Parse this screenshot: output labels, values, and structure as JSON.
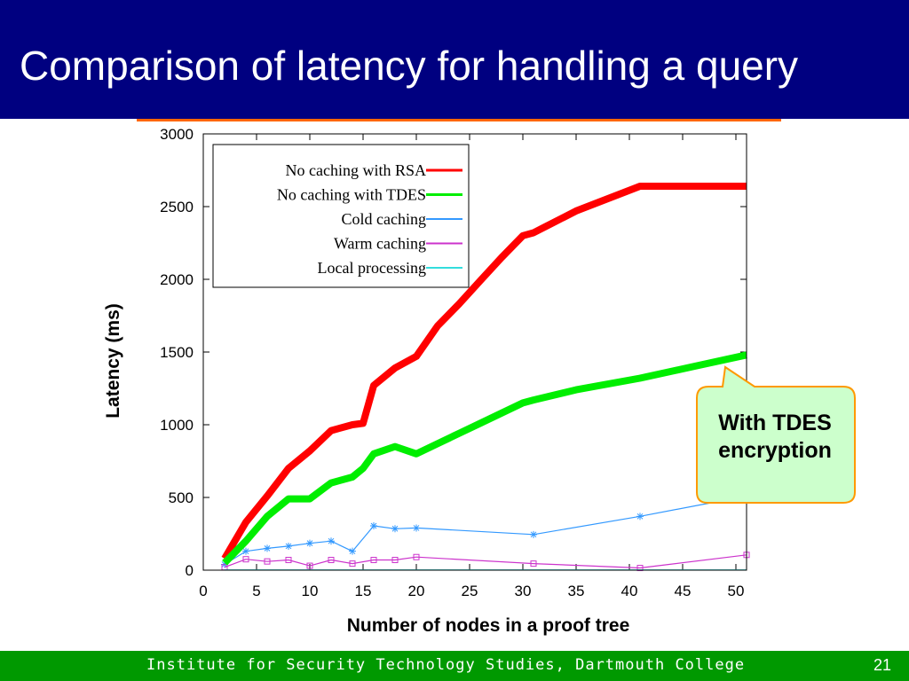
{
  "slide": {
    "title": "Comparison of latency for handling a query",
    "footer": "Institute for Security Technology Studies, Dartmouth College",
    "page_number": "21"
  },
  "callout": {
    "text": "With TDES encryption"
  },
  "colors": {
    "title_bar": "#000080",
    "footer_bar": "#009900",
    "accent_rule": "#ff6600",
    "callout_fill": "#ccffcc",
    "callout_border": "#ff9900"
  },
  "chart_data": {
    "type": "line",
    "xlabel": "Number of nodes in a proof tree",
    "ylabel": "Latency (ms)",
    "xlim": [
      0,
      51
    ],
    "ylim": [
      0,
      3000
    ],
    "xticks": [
      0,
      5,
      10,
      15,
      20,
      25,
      30,
      35,
      40,
      45,
      50
    ],
    "yticks": [
      0,
      500,
      1000,
      1500,
      2000,
      2500,
      3000
    ],
    "legend_position": "top-left",
    "grid": false,
    "series": [
      {
        "name": "No caching with RSA",
        "color": "#ff0000",
        "width": "thick",
        "marker": "none",
        "x": [
          2,
          4,
          6,
          8,
          10,
          12,
          14,
          15,
          16,
          18,
          20,
          22,
          24,
          26,
          28,
          30,
          31,
          35,
          41,
          46,
          51
        ],
        "y": [
          80,
          330,
          510,
          700,
          820,
          960,
          1000,
          1010,
          1270,
          1390,
          1470,
          1680,
          1830,
          1990,
          2150,
          2300,
          2320,
          2470,
          2640,
          2640,
          2640
        ]
      },
      {
        "name": "No caching with TDES",
        "color": "#00ee00",
        "width": "thick",
        "marker": "none",
        "x": [
          2,
          4,
          6,
          8,
          10,
          12,
          14,
          15,
          16,
          18,
          20,
          22,
          24,
          26,
          28,
          30,
          31,
          35,
          41,
          46,
          51
        ],
        "y": [
          50,
          200,
          370,
          490,
          490,
          600,
          640,
          700,
          800,
          850,
          800,
          870,
          940,
          1010,
          1080,
          1150,
          1170,
          1240,
          1320,
          1400,
          1480
        ]
      },
      {
        "name": "Cold caching",
        "color": "#3399ff",
        "width": "thin",
        "marker": "star",
        "x": [
          2,
          4,
          6,
          8,
          10,
          12,
          14,
          16,
          18,
          20,
          31,
          41,
          51
        ],
        "y": [
          40,
          130,
          150,
          165,
          185,
          200,
          130,
          305,
          285,
          290,
          245,
          370,
          510
        ]
      },
      {
        "name": "Warm caching",
        "color": "#cc33cc",
        "width": "thin",
        "marker": "square",
        "x": [
          2,
          4,
          6,
          8,
          10,
          12,
          14,
          16,
          18,
          20,
          31,
          41,
          51
        ],
        "y": [
          20,
          75,
          60,
          70,
          30,
          70,
          45,
          70,
          70,
          90,
          45,
          15,
          105
        ]
      },
      {
        "name": "Local processing",
        "color": "#33dddd",
        "width": "thin",
        "marker": "none",
        "x": [
          2,
          4,
          6,
          8,
          10,
          12,
          14,
          16,
          18,
          20,
          31,
          41,
          51
        ],
        "y": [
          2,
          2,
          2,
          2,
          2,
          2,
          2,
          2,
          2,
          2,
          2,
          2,
          2
        ]
      }
    ]
  }
}
